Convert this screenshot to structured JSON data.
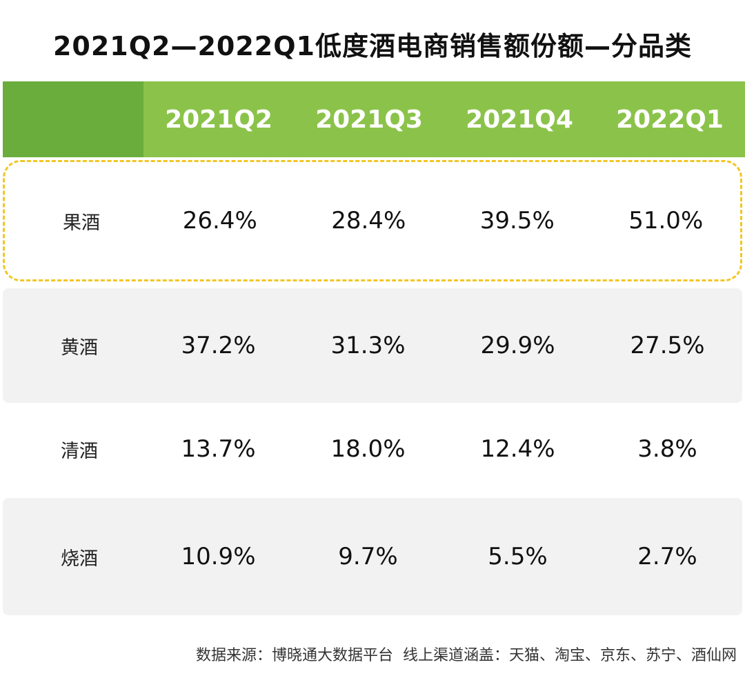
{
  "title": "2021Q2—2022Q1低度酒电商销售额份额—分品类",
  "footer": "数据来源：博晓通大数据平台  线上渠道涵盖：天猫、淘宝、京东、苏宁、酒仙网",
  "colors": {
    "header": "#8bc34a",
    "header_corner": "#6aad3c",
    "highlight_border": "#f2c624",
    "row_shade": "#f2f2f2"
  },
  "chart_data": {
    "type": "table",
    "title": "2021Q2—2022Q1低度酒电商销售额份额—分品类",
    "columns": [
      "2021Q2",
      "2021Q3",
      "2021Q4",
      "2022Q1"
    ],
    "rows": [
      {
        "category": "果酒",
        "values": [
          "26.4%",
          "28.4%",
          "39.5%",
          "51.0%"
        ],
        "highlighted": true
      },
      {
        "category": "黄酒",
        "values": [
          "37.2%",
          "31.3%",
          "29.9%",
          "27.5%"
        ]
      },
      {
        "category": "清酒",
        "values": [
          "13.7%",
          "18.0%",
          "12.4%",
          "3.8%"
        ]
      },
      {
        "category": "烧酒",
        "values": [
          "10.9%",
          "9.7%",
          "5.5%",
          "2.7%"
        ]
      }
    ]
  }
}
